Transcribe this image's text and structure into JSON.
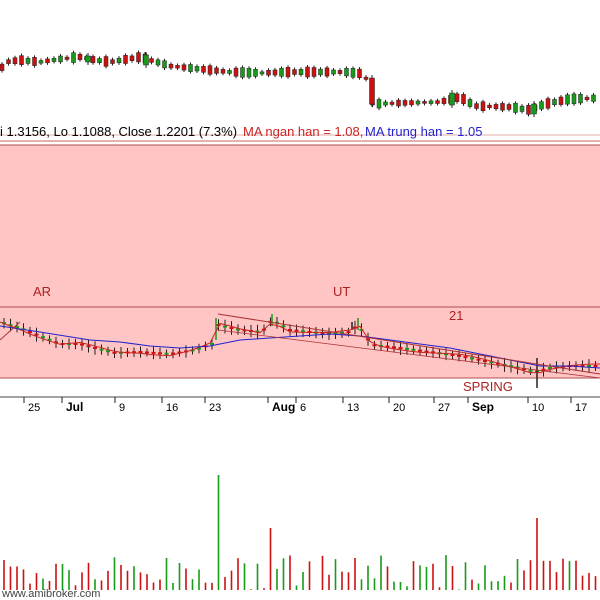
{
  "info": {
    "ohlc_text": "i 1.3156, Lo 1.1088, Close 1.2201 (7.3%)",
    "ma_short_label": "MA ngan han = 1.08,",
    "ma_long_label": "MA trung han = 1.05",
    "ma_short_color": "#cc2222",
    "ma_long_color": "#2222cc"
  },
  "annotations": {
    "ar": "AR",
    "ut": "UT",
    "count": "21",
    "spring": "SPRING"
  },
  "x_axis": {
    "labels": [
      "25",
      "Jul",
      "9",
      "16",
      "23",
      "Aug",
      "6",
      "13",
      "20",
      "27",
      "Sep",
      "10",
      "17"
    ]
  },
  "footer": {
    "watermark": "www.amibroker.com"
  },
  "colors": {
    "up": "#1a9a1a",
    "down": "#cc1111",
    "zone_fill": "#ffc4c4",
    "zone_border": "#b05050",
    "ma_short": "#cc2222",
    "ma_long": "#2222cc"
  },
  "chart_data": {
    "type": "candlestick",
    "title": "",
    "panels": [
      "price-overview",
      "price-zoom",
      "volume"
    ],
    "x": [
      "25",
      "Jul",
      "9",
      "16",
      "23",
      "Aug",
      "6",
      "13",
      "20",
      "27",
      "Sep",
      "10",
      "17"
    ],
    "price_range": [
      0.9,
      1.4
    ],
    "series": [
      {
        "name": "MA ngan han",
        "values": [
          1.26,
          1.24,
          1.2,
          1.17,
          1.16,
          1.2,
          1.21,
          1.2,
          1.15,
          1.12,
          1.1,
          1.08,
          1.08
        ]
      },
      {
        "name": "MA trung han",
        "values": [
          1.25,
          1.23,
          1.2,
          1.19,
          1.17,
          1.18,
          1.19,
          1.2,
          1.17,
          1.14,
          1.11,
          1.07,
          1.05
        ]
      }
    ],
    "last_bar": {
      "high": 1.3156,
      "low": 1.1088,
      "close": 1.2201,
      "change_pct": 7.3
    },
    "events": [
      "AR",
      "UT",
      "21",
      "SPRING"
    ]
  }
}
